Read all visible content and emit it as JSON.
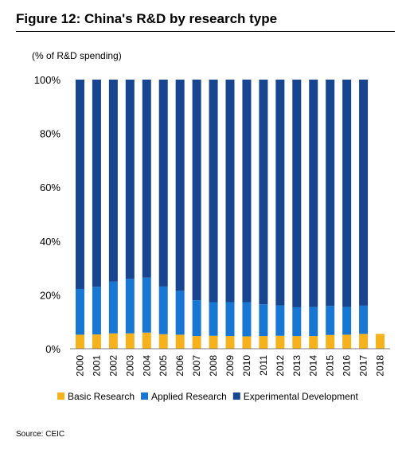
{
  "title": "Figure 12: China's R&D by research type",
  "source": "Source: CEIC",
  "chart_data": {
    "type": "bar",
    "stacked": true,
    "unit_label": "(% of R&D spending)",
    "categories": [
      "2000",
      "2001",
      "2002",
      "2003",
      "2004",
      "2005",
      "2006",
      "2007",
      "2008",
      "2009",
      "2010",
      "2011",
      "2012",
      "2013",
      "2014",
      "2015",
      "2016",
      "2017",
      "2018"
    ],
    "ylim": [
      0,
      100
    ],
    "yticks": [
      "0%",
      "20%",
      "40%",
      "60%",
      "80%",
      "100%"
    ],
    "yticks_values": [
      0,
      20,
      40,
      60,
      80,
      100
    ],
    "legend_position": "bottom",
    "series": [
      {
        "name": "Basic Research",
        "color": "#f5b21c",
        "values": [
          5.2,
          5.3,
          5.7,
          5.7,
          6.0,
          5.4,
          5.2,
          4.7,
          4.8,
          4.7,
          4.6,
          4.7,
          4.8,
          4.7,
          4.7,
          5.1,
          5.2,
          5.5,
          5.5
        ]
      },
      {
        "name": "Applied Research",
        "color": "#1877d3",
        "values": [
          17.0,
          17.7,
          19.2,
          20.3,
          20.4,
          17.7,
          16.3,
          13.3,
          12.5,
          12.6,
          12.7,
          11.8,
          11.3,
          10.7,
          10.8,
          10.8,
          10.3,
          10.5,
          null
        ]
      },
      {
        "name": "Experimental Development",
        "color": "#17458f",
        "values": [
          77.8,
          77.0,
          75.1,
          74.0,
          73.6,
          76.9,
          78.5,
          82.0,
          82.7,
          82.7,
          82.7,
          83.5,
          83.9,
          84.6,
          84.5,
          84.1,
          84.5,
          84.0,
          null
        ]
      }
    ]
  }
}
